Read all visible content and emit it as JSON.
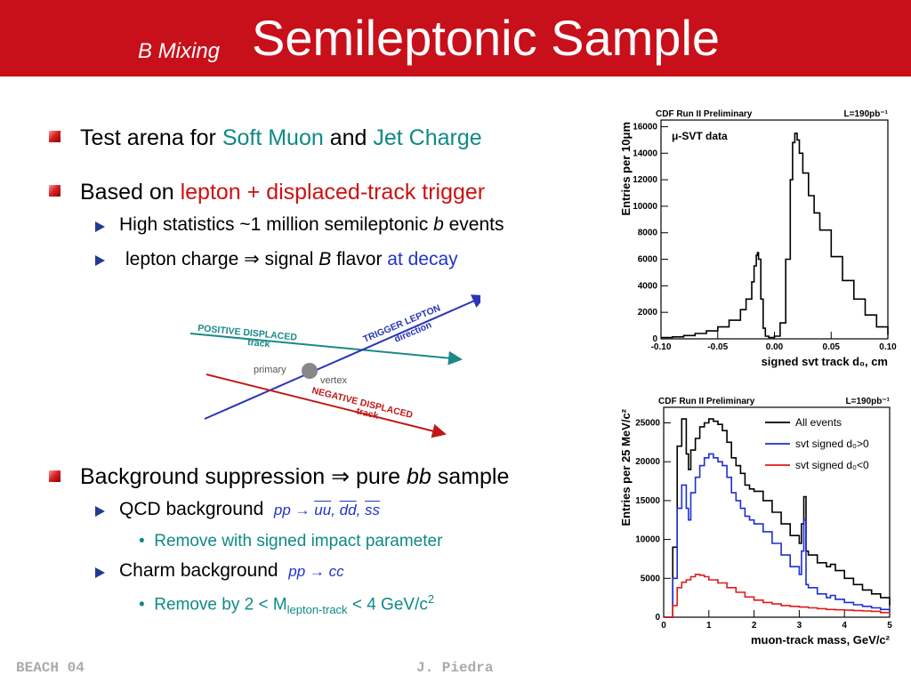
{
  "header": {
    "subtitle": "B Mixing",
    "title": "Semileptonic Sample"
  },
  "bullets": {
    "b1": {
      "pre": "Test arena for ",
      "hl1": "Soft Muon",
      "mid": " and ",
      "hl2": "Jet Charge"
    },
    "b2": {
      "pre": "Based on ",
      "hl": "lepton + displaced-track trigger"
    },
    "b2a": {
      "pre": "High statistics ~1 million semileptonic ",
      "ital": "b",
      "post": " events"
    },
    "b2b": {
      "pre": "lepton charge ⇒ signal ",
      "ital": "B",
      "mid": " flavor ",
      "hl": "at decay"
    },
    "b3": {
      "pre": "Background suppression ⇒ pure ",
      "ital": "bb",
      "post": " sample"
    },
    "b3a": {
      "label": "QCD background",
      "react_pre": "pp → ",
      "react_uu": "uu",
      "comma1": ", ",
      "react_dd": "dd",
      "comma2": ", ",
      "react_ss": "ss"
    },
    "b3a1": {
      "text": "Remove with signed impact parameter"
    },
    "b3b": {
      "label": "Charm background",
      "react": "pp → cc"
    },
    "b3b1": {
      "pre": "Remove by 2 < M",
      "sub": "lepton-track",
      "mid": " < 4 GeV/c",
      "sup": "2"
    }
  },
  "diagram": {
    "positive_line1": "POSITIVE DISPLACED",
    "positive_line2": "track",
    "trigger_line1": "TRIGGER LEPTON",
    "trigger_line2": "direction",
    "negative_line1": "NEGATIVE DISPLACED",
    "negative_line2": "track",
    "primary": "primary",
    "vertex": "vertex",
    "colors": {
      "positive": "#1a8a86",
      "trigger": "#2b35b8",
      "negative": "#c01818"
    }
  },
  "chart_data": [
    {
      "type": "line",
      "header_left": "CDF Run II Preliminary",
      "header_right": "L=190pb⁻¹",
      "legend": "μ-SVT data",
      "xlabel": "signed svt track d₀, cm",
      "ylabel": "Entries per 10μm",
      "xlim": [
        -0.1,
        0.1
      ],
      "ylim": [
        0,
        16500
      ],
      "xticks": [
        "-0.10",
        "-0.05",
        "0.00",
        "0.05",
        "0.10"
      ],
      "yticks": [
        "0",
        "2000",
        "4000",
        "6000",
        "8000",
        "10000",
        "12000",
        "14000",
        "16000"
      ],
      "series": [
        {
          "color": "#000000",
          "x": [
            -0.1,
            -0.09,
            -0.08,
            -0.07,
            -0.06,
            -0.05,
            -0.04,
            -0.03,
            -0.025,
            -0.02,
            -0.018,
            -0.016,
            -0.015,
            -0.014,
            -0.012,
            -0.01,
            -0.008,
            -0.005,
            0.0,
            0.005,
            0.01,
            0.014,
            0.016,
            0.018,
            0.02,
            0.022,
            0.025,
            0.03,
            0.035,
            0.04,
            0.05,
            0.06,
            0.07,
            0.08,
            0.09,
            0.1
          ],
          "y": [
            100,
            150,
            250,
            400,
            600,
            900,
            1400,
            2200,
            3000,
            4300,
            5500,
            6300,
            6500,
            6000,
            3000,
            800,
            200,
            100,
            200,
            1200,
            6000,
            12000,
            14800,
            15500,
            15000,
            14000,
            12500,
            10800,
            9500,
            8200,
            6200,
            4400,
            3000,
            1800,
            900,
            300
          ]
        }
      ]
    },
    {
      "type": "line",
      "header_left": "CDF Run II Preliminary",
      "header_right": "L=190pb⁻¹",
      "xlabel": "muon-track mass, GeV/c²",
      "ylabel": "Entries per 25 MeV/c²",
      "xlim": [
        0,
        5
      ],
      "ylim": [
        0,
        27000
      ],
      "xticks": [
        "0",
        "1",
        "2",
        "3",
        "4",
        "5"
      ],
      "yticks": [
        "0",
        "5000",
        "10000",
        "15000",
        "20000",
        "25000"
      ],
      "legend_position": "top-right",
      "series": [
        {
          "name": "All events",
          "color": "#000000",
          "x": [
            0,
            0.1,
            0.2,
            0.3,
            0.4,
            0.5,
            0.55,
            0.6,
            0.7,
            0.8,
            0.9,
            1.0,
            1.1,
            1.2,
            1.3,
            1.4,
            1.5,
            1.6,
            1.7,
            1.8,
            1.9,
            2.0,
            2.2,
            2.4,
            2.6,
            2.8,
            3.0,
            3.05,
            3.1,
            3.15,
            3.2,
            3.4,
            3.6,
            3.69,
            3.8,
            4.0,
            4.2,
            4.4,
            4.6,
            4.8,
            5.0
          ],
          "y": [
            0,
            0,
            9000,
            22000,
            25500,
            21000,
            19000,
            21500,
            23000,
            24500,
            25000,
            25500,
            25200,
            24800,
            24000,
            22500,
            20500,
            19500,
            18500,
            17000,
            16500,
            16200,
            15000,
            13500,
            12000,
            10500,
            9500,
            12000,
            15500,
            8500,
            8000,
            7000,
            6500,
            6800,
            6000,
            5000,
            4200,
            3500,
            3000,
            2500,
            1500
          ]
        },
        {
          "name": "svt signed d₀>0",
          "color": "#1d2fd0",
          "x": [
            0,
            0.1,
            0.2,
            0.3,
            0.4,
            0.5,
            0.55,
            0.6,
            0.7,
            0.8,
            0.9,
            1.0,
            1.1,
            1.2,
            1.3,
            1.4,
            1.5,
            1.6,
            1.7,
            1.8,
            1.9,
            2.0,
            2.2,
            2.4,
            2.6,
            2.8,
            3.0,
            3.05,
            3.1,
            3.15,
            3.2,
            3.4,
            3.6,
            3.69,
            3.8,
            4.0,
            4.2,
            4.4,
            4.6,
            4.8,
            5.0
          ],
          "y": [
            0,
            0,
            5000,
            14000,
            17000,
            14000,
            12500,
            16000,
            18000,
            19500,
            20500,
            21000,
            20500,
            20000,
            19500,
            18000,
            16000,
            15000,
            14000,
            13000,
            12500,
            12000,
            11000,
            9500,
            8000,
            6500,
            5500,
            8500,
            12500,
            4200,
            3800,
            3000,
            2500,
            2800,
            2300,
            1900,
            1600,
            1400,
            1200,
            1000,
            700
          ]
        },
        {
          "name": "svt signed d₀<0",
          "color": "#e01a1a",
          "x": [
            0,
            0.1,
            0.2,
            0.3,
            0.4,
            0.5,
            0.6,
            0.7,
            0.8,
            0.9,
            1.0,
            1.2,
            1.4,
            1.6,
            1.8,
            2.0,
            2.2,
            2.4,
            2.6,
            2.8,
            3.0,
            3.2,
            3.4,
            3.6,
            3.8,
            4.0,
            4.2,
            4.4,
            4.6,
            4.8,
            5.0
          ],
          "y": [
            0,
            0,
            1500,
            3800,
            4500,
            4800,
            5200,
            5500,
            5400,
            5200,
            4800,
            4400,
            3800,
            3200,
            2600,
            2200,
            1900,
            1700,
            1500,
            1400,
            1300,
            1200,
            1100,
            1000,
            950,
            900,
            850,
            800,
            750,
            600,
            400
          ]
        }
      ]
    }
  ],
  "footer": {
    "left": "BEACH 04",
    "center": "J. Piedra"
  }
}
